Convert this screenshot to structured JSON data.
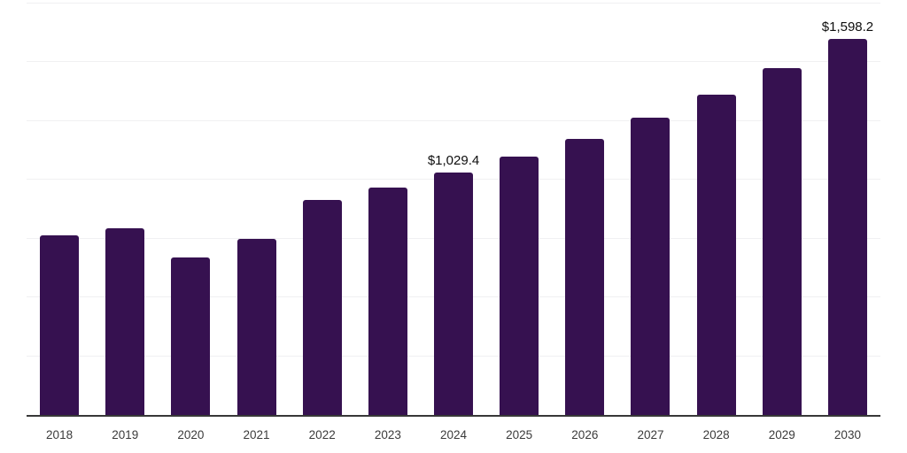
{
  "chart_data": {
    "type": "bar",
    "title": "",
    "xlabel": "",
    "ylabel": "",
    "categories": [
      "2018",
      "2019",
      "2020",
      "2021",
      "2022",
      "2023",
      "2024",
      "2025",
      "2026",
      "2027",
      "2028",
      "2029",
      "2030"
    ],
    "values": [
      763,
      793,
      670,
      748,
      916,
      968,
      1029.4,
      1098,
      1176,
      1266,
      1362,
      1474,
      1598.2
    ],
    "value_labels": [
      {
        "index": 6,
        "text": "$1,029.4"
      },
      {
        "index": 12,
        "text": "$1,598.2"
      }
    ],
    "ylim": [
      0,
      1750
    ],
    "gridline_interval": 250,
    "grid": "horizontal-only",
    "legend": "none",
    "y_axis_ticks_visible": false,
    "colors": {
      "bar": "#361150",
      "axis": "#383838",
      "gridline": "#f0f0f2",
      "value_label": "#0e0e0e",
      "tick_label": "#3b3b3b",
      "background": "#ffffff"
    }
  }
}
